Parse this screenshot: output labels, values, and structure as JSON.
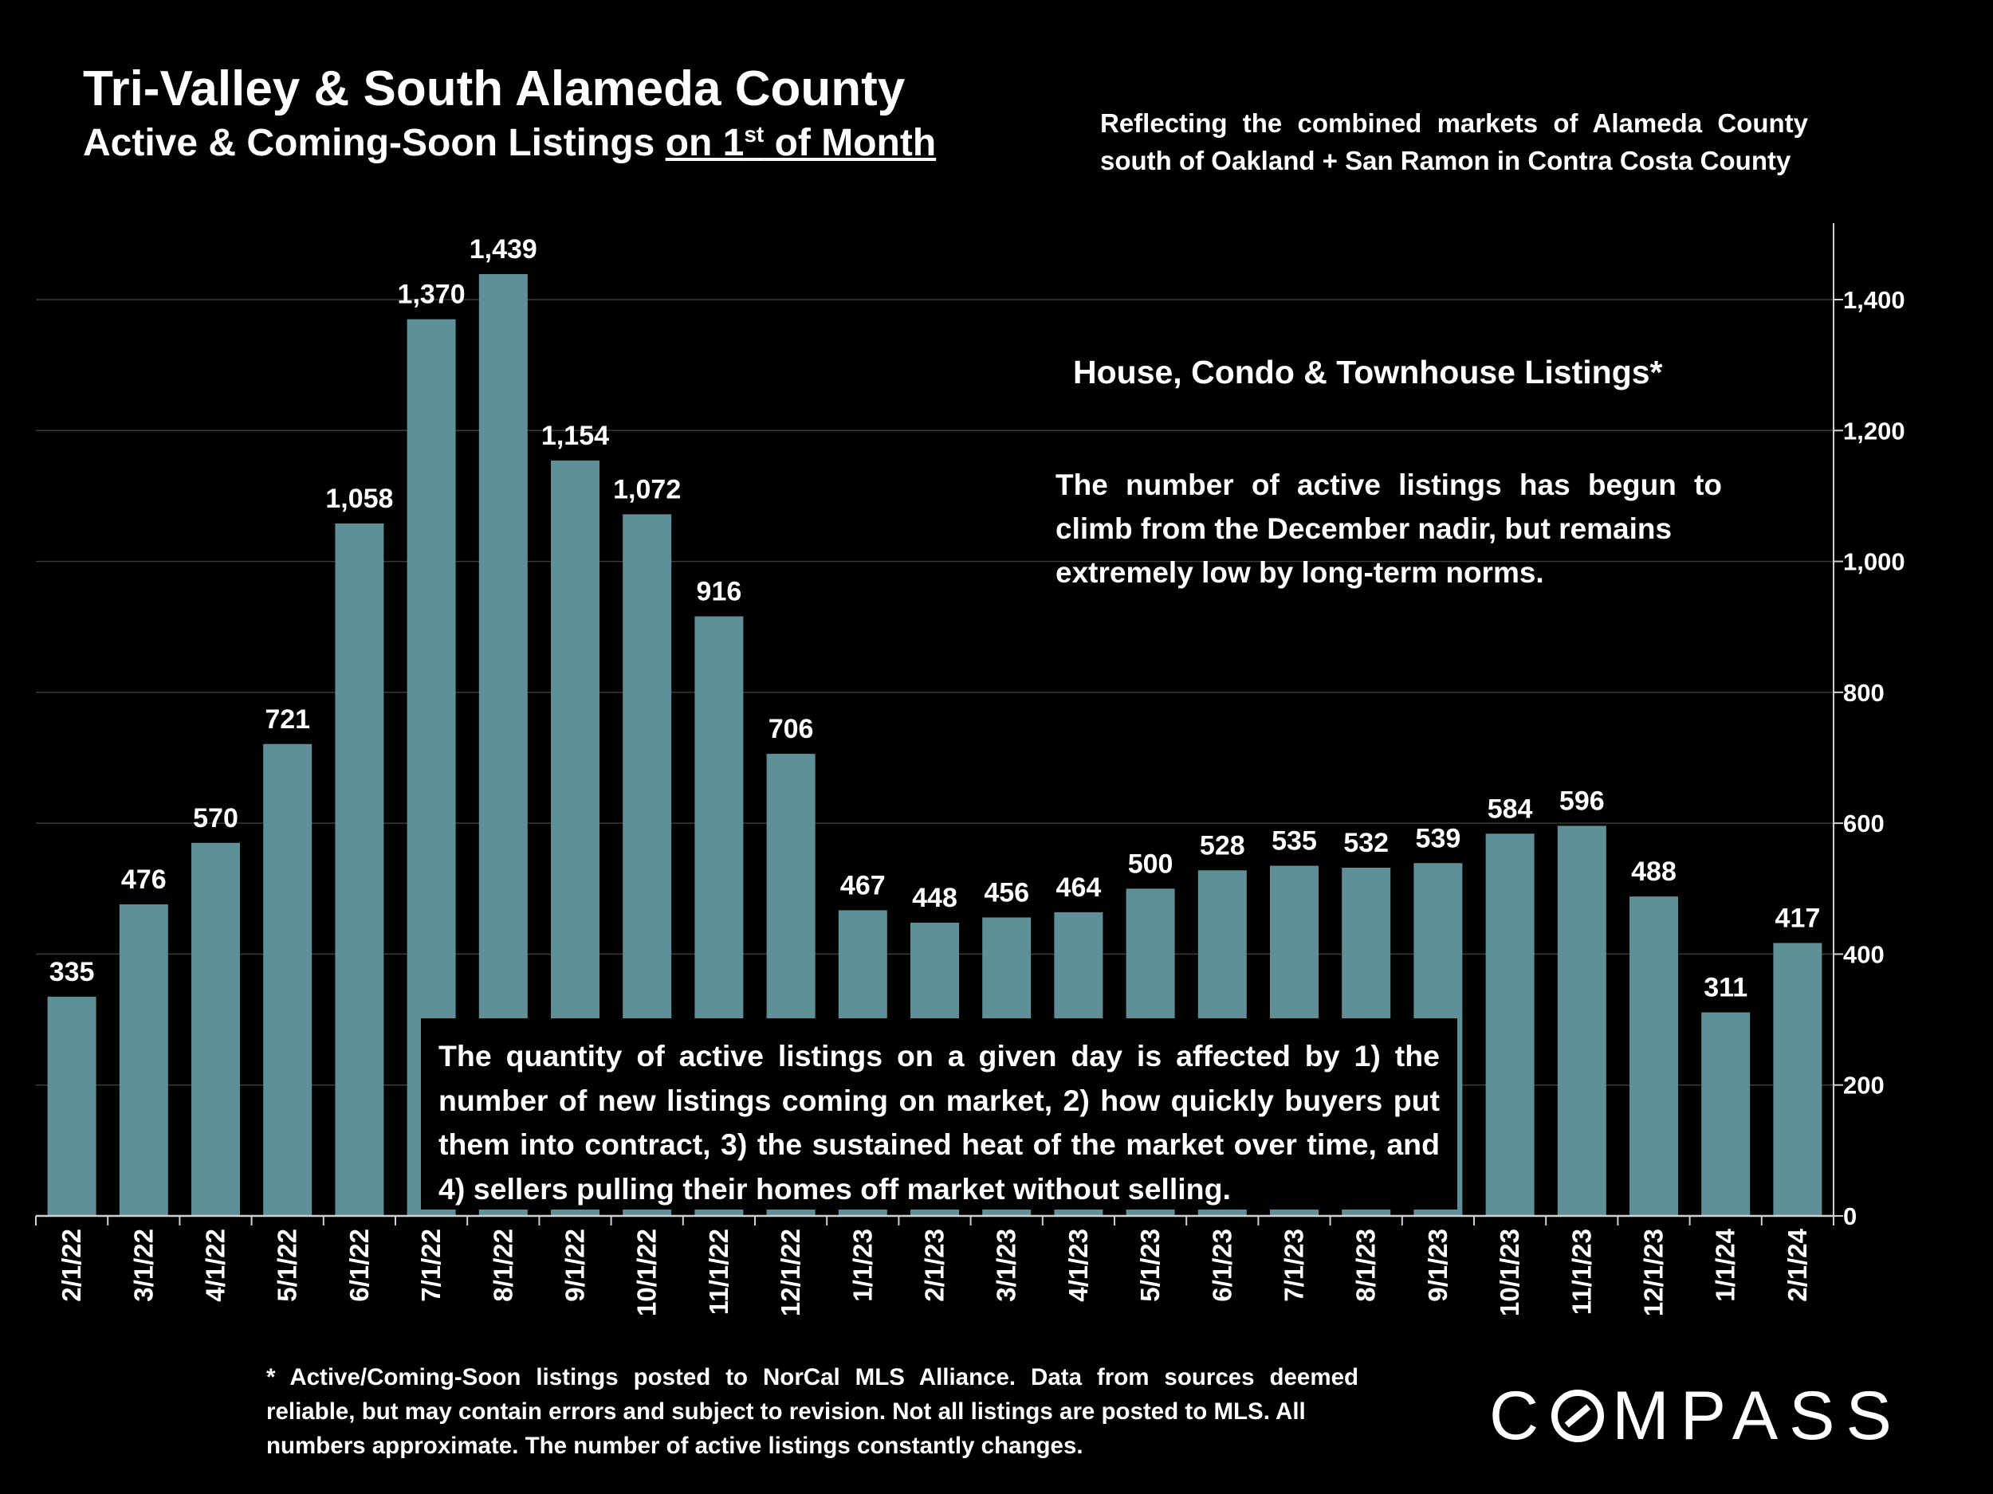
{
  "header": {
    "title": "Tri-Valley & South Alameda County",
    "subtitle_prefix": "Active & Coming-Soon Listings ",
    "subtitle_underline_pre": "on 1",
    "subtitle_sup": "st",
    "subtitle_underline_post": " of Month",
    "reflect_line1": "Reflecting the combined markets of Alameda County",
    "reflect_line2": "south of Oakland + San Ramon in Contra Costa County"
  },
  "annotations": {
    "series_label": "House, Condo & Townhouse Listings*",
    "note_main": "The number of active listings has begun to climb from the December nadir, but remains",
    "note_last": "extremely low by long-term norms.",
    "quantity_note": "The quantity of active listings on a given day is affected by 1) the number of new listings coming on market, 2) how quickly buyers put them into contract, 3) the sustained heat of the market over time, and 4) sellers pulling their homes off market without selling.",
    "footnote_main": "* Active/Coming-Soon listings posted to NorCal MLS Alliance.  Data from sources deemed reliable, but may contain errors and subject to revision.  Not all listings are posted to MLS. All",
    "footnote_last": "numbers approximate. The number of active listings constantly changes."
  },
  "branding": {
    "logo_pre": "C",
    "logo_post": "MPASS"
  },
  "colors": {
    "bar": "#5f9097",
    "background": "#000000",
    "text": "#ffffff",
    "gridline": "#3a3a3a"
  },
  "chart_data": {
    "type": "bar",
    "title": "Active & Coming-Soon Listings on 1st of Month",
    "xlabel": "",
    "ylabel": "",
    "ylim": [
      0,
      1500
    ],
    "yticks": [
      0,
      200,
      400,
      600,
      800,
      1000,
      1200,
      1400
    ],
    "ytick_labels": [
      "0",
      "200",
      "400",
      "600",
      "800",
      "1,000",
      "1,200",
      "1,400"
    ],
    "y_axis_side": "right",
    "grid": true,
    "categories": [
      "2/1/22",
      "3/1/22",
      "4/1/22",
      "5/1/22",
      "6/1/22",
      "7/1/22",
      "8/1/22",
      "9/1/22",
      "10/1/22",
      "11/1/22",
      "12/1/22",
      "1/1/23",
      "2/1/23",
      "3/1/23",
      "4/1/23",
      "5/1/23",
      "6/1/23",
      "7/1/23",
      "8/1/23",
      "9/1/23",
      "10/1/23",
      "11/1/23",
      "12/1/23",
      "1/1/24",
      "2/1/24"
    ],
    "values": [
      335,
      476,
      570,
      721,
      1058,
      1370,
      1439,
      1154,
      1072,
      916,
      706,
      467,
      448,
      456,
      464,
      500,
      528,
      535,
      532,
      539,
      584,
      596,
      488,
      311,
      417
    ],
    "value_labels": [
      "335",
      "476",
      "570",
      "721",
      "1,058",
      "1,370",
      "1,439",
      "1,154",
      "1,072",
      "916",
      "706",
      "467",
      "448",
      "456",
      "464",
      "500",
      "528",
      "535",
      "532",
      "539",
      "584",
      "596",
      "488",
      "311",
      "417"
    ]
  }
}
